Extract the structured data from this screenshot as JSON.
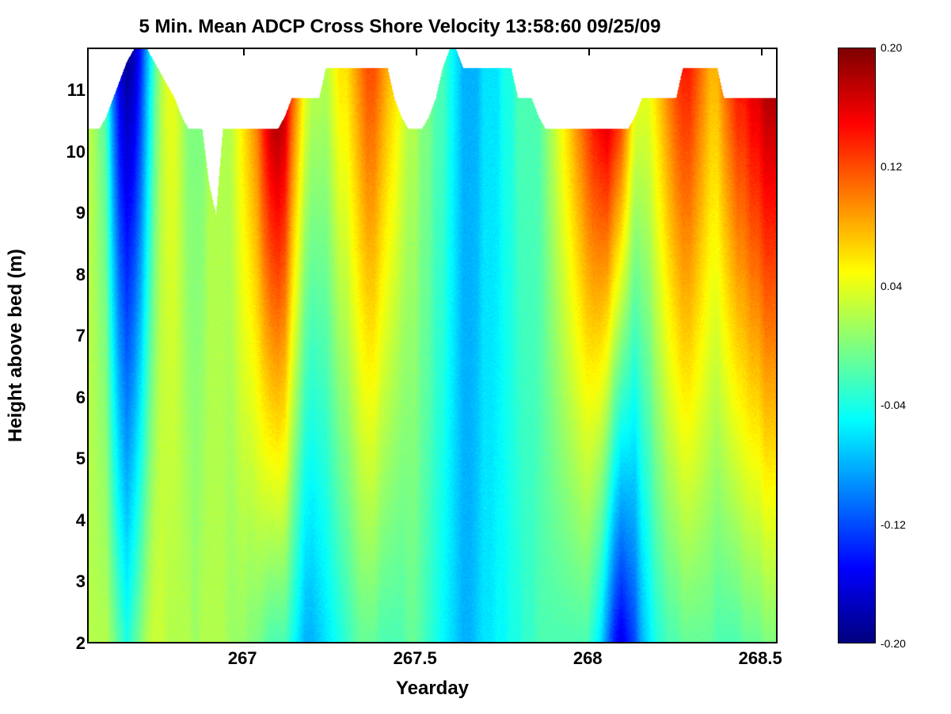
{
  "chart": {
    "type": "heatmap",
    "title": "5 Min. Mean ADCP Cross Shore Velocity 13:58:60 09/25/09",
    "xlabel": "Yearday",
    "ylabel": "Height above bed (m)",
    "xlim": [
      266.55,
      268.55
    ],
    "ylim": [
      2,
      11.7
    ],
    "xtick_positions": [
      267,
      267.5,
      268,
      268.5
    ],
    "xtick_labels": [
      "267",
      "267.5",
      "268",
      "268.5"
    ],
    "ytick_positions": [
      2,
      3,
      4,
      5,
      6,
      7,
      8,
      9,
      10,
      11
    ],
    "ytick_labels": [
      "2",
      "3",
      "4",
      "5",
      "6",
      "7",
      "8",
      "9",
      "10",
      "11"
    ],
    "title_fontsize": 24,
    "label_fontsize": 24,
    "tick_fontsize": 22,
    "background_color": "#ffffff",
    "border_color": "#000000",
    "colorbar": {
      "vmin": -0.2,
      "vmax": 0.2,
      "tick_positions": [
        -0.2,
        -0.12,
        -0.04,
        0.04,
        0.12,
        0.2
      ],
      "tick_labels": [
        "-0.20",
        "-0.12",
        "-0.04",
        "0.04",
        "0.12",
        "0.20"
      ],
      "tick_fontsize": 14,
      "colormap_name": "jet",
      "colormap_stops": [
        [
          0.0,
          "#00007f"
        ],
        [
          0.125,
          "#0000ff"
        ],
        [
          0.375,
          "#00ffff"
        ],
        [
          0.625,
          "#ffff00"
        ],
        [
          0.875,
          "#ff0000"
        ],
        [
          1.0,
          "#7f0000"
        ]
      ]
    },
    "data_columns_comment": "Each column = [yd, surface_height_m, top_value, bottom_value]. Linear interp top->bottom; above surface = NaN (white).",
    "columns": [
      [
        266.56,
        10.4,
        0.02,
        0.02
      ],
      [
        266.58,
        10.4,
        0.0,
        0.02
      ],
      [
        266.6,
        10.6,
        -0.02,
        0.02
      ],
      [
        266.62,
        10.9,
        -0.1,
        0.0
      ],
      [
        266.64,
        11.2,
        -0.16,
        -0.02
      ],
      [
        266.66,
        11.5,
        -0.19,
        -0.04
      ],
      [
        266.68,
        11.7,
        -0.18,
        -0.02
      ],
      [
        266.7,
        11.7,
        -0.14,
        0.0
      ],
      [
        266.72,
        11.7,
        -0.08,
        0.02
      ],
      [
        266.74,
        11.5,
        -0.02,
        0.03
      ],
      [
        266.76,
        11.3,
        0.02,
        0.03
      ],
      [
        266.78,
        11.1,
        0.04,
        0.02
      ],
      [
        266.8,
        10.9,
        0.04,
        0.02
      ],
      [
        266.82,
        10.6,
        0.02,
        0.02
      ],
      [
        266.84,
        10.4,
        0.0,
        0.02
      ],
      [
        266.86,
        10.4,
        0.0,
        0.01
      ],
      [
        266.88,
        10.4,
        0.0,
        0.02
      ],
      [
        266.9,
        9.5,
        0.02,
        0.02
      ],
      [
        266.92,
        9.0,
        0.02,
        0.02
      ],
      [
        266.94,
        10.4,
        0.02,
        0.02
      ],
      [
        266.96,
        10.4,
        0.02,
        0.01
      ],
      [
        266.98,
        10.4,
        0.04,
        0.01
      ],
      [
        267.0,
        10.4,
        0.06,
        0.01
      ],
      [
        267.02,
        10.4,
        0.08,
        0.0
      ],
      [
        267.04,
        10.4,
        0.1,
        0.0
      ],
      [
        267.06,
        10.4,
        0.14,
        -0.01
      ],
      [
        267.08,
        10.4,
        0.17,
        -0.02
      ],
      [
        267.1,
        10.4,
        0.18,
        -0.02
      ],
      [
        267.12,
        10.6,
        0.17,
        -0.02
      ],
      [
        267.14,
        10.9,
        0.12,
        -0.04
      ],
      [
        267.16,
        10.9,
        0.08,
        -0.06
      ],
      [
        267.18,
        10.9,
        0.04,
        -0.08
      ],
      [
        267.2,
        10.9,
        0.02,
        -0.08
      ],
      [
        267.22,
        10.9,
        0.02,
        -0.07
      ],
      [
        267.24,
        11.4,
        0.02,
        -0.06
      ],
      [
        267.26,
        11.4,
        0.04,
        -0.05
      ],
      [
        267.28,
        11.4,
        0.06,
        -0.04
      ],
      [
        267.3,
        11.4,
        0.06,
        -0.03
      ],
      [
        267.32,
        11.4,
        0.08,
        -0.02
      ],
      [
        267.34,
        11.4,
        0.1,
        -0.01
      ],
      [
        267.36,
        11.4,
        0.12,
        -0.01
      ],
      [
        267.38,
        11.4,
        0.12,
        -0.01
      ],
      [
        267.4,
        11.4,
        0.1,
        -0.02
      ],
      [
        267.42,
        11.4,
        0.08,
        -0.02
      ],
      [
        267.44,
        10.9,
        0.06,
        -0.02
      ],
      [
        267.46,
        10.6,
        0.04,
        -0.02
      ],
      [
        267.48,
        10.4,
        0.02,
        -0.01
      ],
      [
        267.5,
        10.4,
        0.02,
        -0.01
      ],
      [
        267.52,
        10.4,
        0.0,
        -0.02
      ],
      [
        267.54,
        10.6,
        0.0,
        -0.03
      ],
      [
        267.56,
        10.9,
        -0.02,
        -0.04
      ],
      [
        267.58,
        11.4,
        -0.02,
        -0.05
      ],
      [
        267.6,
        11.7,
        -0.04,
        -0.06
      ],
      [
        267.62,
        11.7,
        -0.06,
        -0.07
      ],
      [
        267.64,
        11.4,
        -0.08,
        -0.08
      ],
      [
        267.66,
        11.4,
        -0.08,
        -0.08
      ],
      [
        267.68,
        11.4,
        -0.08,
        -0.07
      ],
      [
        267.7,
        11.4,
        -0.06,
        -0.06
      ],
      [
        267.72,
        11.4,
        -0.06,
        -0.06
      ],
      [
        267.74,
        11.4,
        -0.06,
        -0.05
      ],
      [
        267.76,
        11.4,
        -0.04,
        -0.05
      ],
      [
        267.78,
        11.4,
        -0.04,
        -0.04
      ],
      [
        267.8,
        10.9,
        -0.02,
        -0.04
      ],
      [
        267.82,
        10.9,
        -0.02,
        -0.03
      ],
      [
        267.84,
        10.9,
        -0.02,
        -0.03
      ],
      [
        267.86,
        10.6,
        -0.02,
        -0.02
      ],
      [
        267.88,
        10.4,
        0.0,
        -0.02
      ],
      [
        267.9,
        10.4,
        0.02,
        -0.02
      ],
      [
        267.92,
        10.4,
        0.04,
        -0.02
      ],
      [
        267.94,
        10.4,
        0.06,
        -0.02
      ],
      [
        267.96,
        10.4,
        0.08,
        -0.02
      ],
      [
        267.98,
        10.4,
        0.1,
        -0.02
      ],
      [
        268.0,
        10.4,
        0.12,
        -0.02
      ],
      [
        268.02,
        10.4,
        0.14,
        -0.04
      ],
      [
        268.04,
        10.4,
        0.15,
        -0.06
      ],
      [
        268.06,
        10.4,
        0.16,
        -0.1
      ],
      [
        268.08,
        10.4,
        0.14,
        -0.14
      ],
      [
        268.1,
        10.4,
        0.12,
        -0.16
      ],
      [
        268.12,
        10.4,
        0.08,
        -0.14
      ],
      [
        268.14,
        10.6,
        0.04,
        -0.12
      ],
      [
        268.16,
        10.9,
        0.04,
        -0.08
      ],
      [
        268.18,
        10.9,
        0.04,
        -0.06
      ],
      [
        268.2,
        10.9,
        0.06,
        -0.04
      ],
      [
        268.22,
        10.9,
        0.08,
        -0.03
      ],
      [
        268.24,
        10.9,
        0.1,
        -0.02
      ],
      [
        268.26,
        10.9,
        0.12,
        -0.02
      ],
      [
        268.28,
        11.4,
        0.14,
        -0.01
      ],
      [
        268.3,
        11.4,
        0.14,
        -0.01
      ],
      [
        268.32,
        11.4,
        0.12,
        -0.01
      ],
      [
        268.34,
        11.4,
        0.1,
        -0.01
      ],
      [
        268.36,
        11.4,
        0.08,
        -0.01
      ],
      [
        268.38,
        11.4,
        0.08,
        -0.02
      ],
      [
        268.4,
        10.9,
        0.1,
        -0.02
      ],
      [
        268.42,
        10.9,
        0.12,
        -0.02
      ],
      [
        268.44,
        10.9,
        0.14,
        -0.02
      ],
      [
        268.46,
        10.9,
        0.14,
        -0.01
      ],
      [
        268.48,
        10.9,
        0.16,
        -0.01
      ],
      [
        268.5,
        10.9,
        0.16,
        -0.01
      ],
      [
        268.52,
        10.9,
        0.18,
        0.0
      ],
      [
        268.54,
        10.9,
        0.18,
        0.0
      ]
    ]
  }
}
